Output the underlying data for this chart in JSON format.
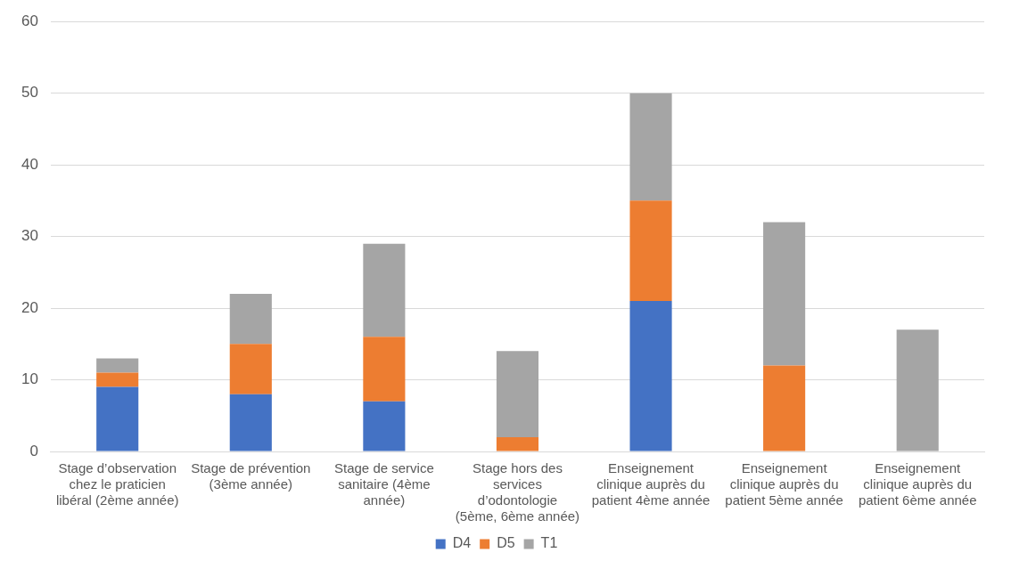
{
  "chart_data": {
    "type": "bar",
    "stacked": true,
    "categories": [
      "Stage d’observation chez le praticien libéral (2ème année)",
      "Stage de prévention (3ème année)",
      "Stage de service sanitaire (4ème année)",
      "Stage hors des services d’odontologie (5ème, 6ème année)",
      "Enseignement clinique auprès du patient 4ème année",
      "Enseignement clinique auprès du patient 5ème année",
      "Enseignement clinique auprès du patient 6ème année"
    ],
    "series": [
      {
        "name": "D4",
        "color": "#4472c4",
        "values": [
          9,
          8,
          7,
          0,
          21,
          0,
          0
        ]
      },
      {
        "name": "D5",
        "color": "#ed7d31",
        "values": [
          2,
          7,
          9,
          2,
          14,
          12,
          0
        ]
      },
      {
        "name": "T1",
        "color": "#a5a5a5",
        "values": [
          2,
          7,
          13,
          12,
          15,
          20,
          17
        ]
      }
    ],
    "ylim": [
      0,
      60
    ],
    "yticks": [
      0,
      10,
      20,
      30,
      40,
      50,
      60
    ],
    "grid": "y",
    "legend": "bottom"
  }
}
